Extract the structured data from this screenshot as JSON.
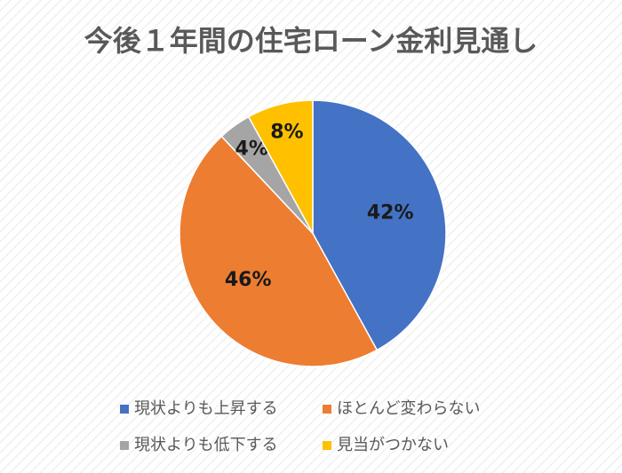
{
  "chart_data": {
    "type": "pie",
    "title": "今後１年間の住宅ローン金利見通し",
    "categories": [
      "現状よりも上昇する",
      "ほとんど変わらない",
      "現状よりも低下する",
      "見当がつかない"
    ],
    "values": [
      42,
      46,
      4,
      8
    ],
    "value_labels": [
      "42%",
      "46%",
      "4%",
      "8%"
    ],
    "colors": [
      "#4472c4",
      "#ed7d31",
      "#a5a5a5",
      "#ffc000"
    ]
  }
}
